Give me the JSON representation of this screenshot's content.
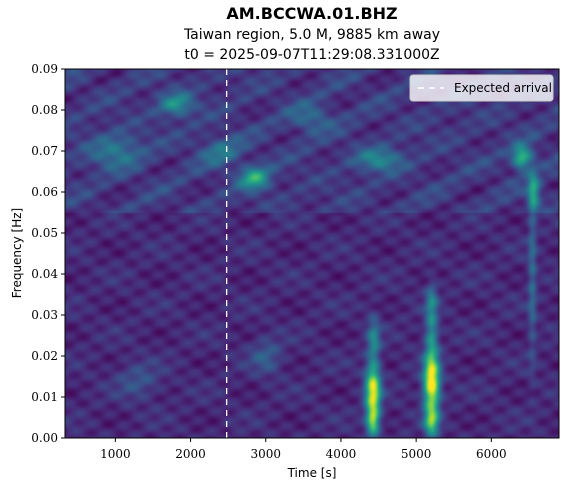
{
  "chart_data": {
    "type": "heatmap",
    "title": "AM.BCCWA.01.BHZ",
    "subtitle_lines": [
      "Taiwan region, 5.0 M, 9885 km away",
      "t0 = 2025-09-07T11:29:08.331000Z"
    ],
    "xlabel": "Time [s]",
    "ylabel": "Frequency [Hz]",
    "xlim": [
      330,
      6900
    ],
    "ylim": [
      0.0,
      0.09
    ],
    "xticks": [
      1000,
      2000,
      3000,
      4000,
      5000,
      6000
    ],
    "xtick_labels": [
      "1000",
      "2000",
      "3000",
      "4000",
      "5000",
      "6000"
    ],
    "yticks": [
      0.0,
      0.01,
      0.02,
      0.03,
      0.04,
      0.05,
      0.06,
      0.07,
      0.08,
      0.09
    ],
    "ytick_labels": [
      "0.00",
      "0.01",
      "0.02",
      "0.03",
      "0.04",
      "0.05",
      "0.06",
      "0.07",
      "0.08",
      "0.09"
    ],
    "colormap": "viridis",
    "expected_arrival": {
      "x": 2480,
      "label": "Expected arrival",
      "color": "#ffffff",
      "style": "dashed"
    },
    "legend_position": "top-right",
    "background_intensity": 0.12,
    "hotspots": [
      {
        "t": 4420,
        "f": 0.0115,
        "st": 70,
        "sf": 0.0045,
        "a": 0.85
      },
      {
        "t": 4420,
        "f": 0.004,
        "st": 60,
        "sf": 0.0025,
        "a": 0.55
      },
      {
        "t": 4430,
        "f": 0.024,
        "st": 60,
        "sf": 0.004,
        "a": 0.32
      },
      {
        "t": 5200,
        "f": 0.0135,
        "st": 75,
        "sf": 0.005,
        "a": 0.95
      },
      {
        "t": 5200,
        "f": 0.004,
        "st": 65,
        "sf": 0.0025,
        "a": 0.55
      },
      {
        "t": 5200,
        "f": 0.026,
        "st": 60,
        "sf": 0.005,
        "a": 0.35
      },
      {
        "t": 5200,
        "f": 0.034,
        "st": 55,
        "sf": 0.003,
        "a": 0.22
      },
      {
        "t": 6400,
        "f": 0.0685,
        "st": 90,
        "sf": 0.002,
        "a": 0.55
      },
      {
        "t": 6560,
        "f": 0.06,
        "st": 60,
        "sf": 0.003,
        "a": 0.4
      },
      {
        "t": 6540,
        "f": 0.04,
        "st": 40,
        "sf": 0.015,
        "a": 0.22
      },
      {
        "t": 2850,
        "f": 0.0635,
        "st": 140,
        "sf": 0.002,
        "a": 0.45
      },
      {
        "t": 1800,
        "f": 0.0815,
        "st": 160,
        "sf": 0.002,
        "a": 0.35
      },
      {
        "t": 4500,
        "f": 0.068,
        "st": 220,
        "sf": 0.002,
        "a": 0.3
      },
      {
        "t": 1000,
        "f": 0.07,
        "st": 250,
        "sf": 0.003,
        "a": 0.25
      },
      {
        "t": 2400,
        "f": 0.07,
        "st": 200,
        "sf": 0.0025,
        "a": 0.22
      },
      {
        "t": 3600,
        "f": 0.078,
        "st": 200,
        "sf": 0.0025,
        "a": 0.2
      },
      {
        "t": 3000,
        "f": 0.02,
        "st": 150,
        "sf": 0.003,
        "a": 0.18
      },
      {
        "t": 1300,
        "f": 0.014,
        "st": 200,
        "sf": 0.003,
        "a": 0.15
      }
    ]
  }
}
